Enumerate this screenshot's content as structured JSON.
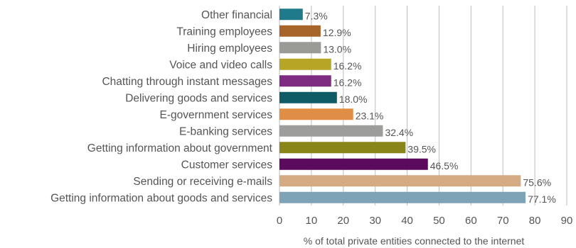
{
  "chart_data": {
    "type": "bar",
    "orientation": "horizontal",
    "categories": [
      "Other financial",
      "Training employees",
      "Hiring employees",
      "Voice and video calls",
      "Chatting through instant messages",
      "Delivering goods and services",
      "E-government services",
      "E-banking services",
      "Getting information about government",
      "Customer services",
      "Sending or receiving e-mails",
      "Getting information about goods and services"
    ],
    "values": [
      7.3,
      12.9,
      13.0,
      16.2,
      16.2,
      18.0,
      23.1,
      32.4,
      39.5,
      46.5,
      75.6,
      77.1
    ],
    "value_labels": [
      "7.3%",
      "12.9%",
      "13.0%",
      "16.2%",
      "16.2%",
      "18.0%",
      "23.1%",
      "32.4%",
      "39.5%",
      "46.5%",
      "75.6%",
      "77.1%"
    ],
    "colors": [
      "#1f7a8c",
      "#a8652b",
      "#9a9a96",
      "#b7a626",
      "#7e2c82",
      "#0f5b66",
      "#e08e45",
      "#9d9e9c",
      "#8a8519",
      "#5c0a5e",
      "#d4ab82",
      "#7ea3b6"
    ],
    "xlabel": "% of total private entities connected to the internet",
    "xlim": [
      0,
      90
    ],
    "xticks": [
      0,
      10,
      20,
      30,
      40,
      50,
      60,
      70,
      80,
      90
    ],
    "grid": "vertical"
  }
}
